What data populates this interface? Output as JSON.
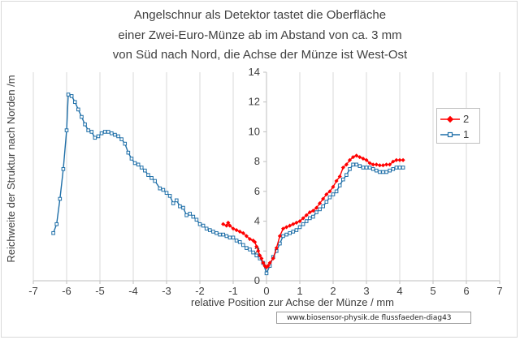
{
  "chart_data": {
    "type": "line",
    "title": [
      "Angelschnur als Detektor tastet die Oberfläche",
      "einer  Zwei-Euro-Münze ab im Abstand von ca. 3 mm",
      "von Süd nach Nord, die Achse der Münze ist West-Ost"
    ],
    "xlabel": "relative Position zur Achse der Münze / mm",
    "ylabel": "Reichweite der Struktur nach Norden /m",
    "xlim": [
      -7,
      7
    ],
    "ylim": [
      0,
      14
    ],
    "x_ticks": [
      "-7",
      "-6",
      "-5",
      "-4",
      "-3",
      "-2",
      "-1",
      "0",
      "1",
      "2",
      "3",
      "4",
      "5",
      "6",
      "7"
    ],
    "y_ticks": [
      "0",
      "2",
      "4",
      "6",
      "8",
      "10",
      "12",
      "14"
    ],
    "grid": "vertical",
    "legend_position": "right",
    "series": [
      {
        "name": "2",
        "color": "#ff0000",
        "marker": "diamond",
        "points": [
          [
            -1.3,
            3.8
          ],
          [
            -1.2,
            3.7
          ],
          [
            -1.15,
            3.9
          ],
          [
            -1.1,
            3.7
          ],
          [
            -1.0,
            3.5
          ],
          [
            -0.9,
            3.4
          ],
          [
            -0.8,
            3.3
          ],
          [
            -0.7,
            3.2
          ],
          [
            -0.6,
            3.0
          ],
          [
            -0.5,
            2.8
          ],
          [
            -0.4,
            2.7
          ],
          [
            -0.35,
            2.6
          ],
          [
            -0.3,
            2.3
          ],
          [
            -0.25,
            2.0
          ],
          [
            -0.2,
            1.7
          ],
          [
            -0.15,
            1.5
          ],
          [
            -0.1,
            1.2
          ],
          [
            -0.05,
            1.0
          ],
          [
            0.0,
            0.9
          ],
          [
            0.05,
            1.0
          ],
          [
            0.1,
            1.2
          ],
          [
            0.2,
            1.5
          ],
          [
            0.3,
            2.2
          ],
          [
            0.4,
            3.0
          ],
          [
            0.5,
            3.5
          ],
          [
            0.6,
            3.6
          ],
          [
            0.7,
            3.7
          ],
          [
            0.8,
            3.8
          ],
          [
            0.9,
            3.9
          ],
          [
            1.0,
            4.0
          ],
          [
            1.1,
            4.2
          ],
          [
            1.2,
            4.4
          ],
          [
            1.3,
            4.6
          ],
          [
            1.4,
            4.7
          ],
          [
            1.5,
            4.9
          ],
          [
            1.6,
            5.2
          ],
          [
            1.7,
            5.5
          ],
          [
            1.8,
            5.8
          ],
          [
            1.9,
            6.0
          ],
          [
            2.0,
            6.3
          ],
          [
            2.1,
            6.7
          ],
          [
            2.2,
            7.0
          ],
          [
            2.3,
            7.6
          ],
          [
            2.4,
            7.8
          ],
          [
            2.5,
            8.1
          ],
          [
            2.6,
            8.3
          ],
          [
            2.7,
            8.4
          ],
          [
            2.8,
            8.3
          ],
          [
            2.9,
            8.2
          ],
          [
            3.0,
            8.1
          ],
          [
            3.1,
            7.9
          ],
          [
            3.2,
            7.8
          ],
          [
            3.3,
            7.8
          ],
          [
            3.4,
            7.75
          ],
          [
            3.5,
            7.75
          ],
          [
            3.6,
            7.8
          ],
          [
            3.7,
            7.8
          ],
          [
            3.8,
            8.0
          ],
          [
            3.9,
            8.1
          ],
          [
            4.0,
            8.1
          ],
          [
            4.1,
            8.1
          ]
        ]
      },
      {
        "name": "1",
        "color": "#1f6fa8",
        "marker": "square",
        "points": [
          [
            -6.4,
            3.2
          ],
          [
            -6.3,
            3.8
          ],
          [
            -6.2,
            5.5
          ],
          [
            -6.1,
            7.5
          ],
          [
            -6.0,
            10.1
          ],
          [
            -5.95,
            12.5
          ],
          [
            -5.85,
            12.4
          ],
          [
            -5.75,
            12.0
          ],
          [
            -5.65,
            11.5
          ],
          [
            -5.55,
            11.0
          ],
          [
            -5.45,
            10.5
          ],
          [
            -5.35,
            10.1
          ],
          [
            -5.25,
            10.0
          ],
          [
            -5.15,
            9.6
          ],
          [
            -5.05,
            9.7
          ],
          [
            -4.95,
            9.9
          ],
          [
            -4.85,
            10.0
          ],
          [
            -4.75,
            10.0
          ],
          [
            -4.65,
            9.9
          ],
          [
            -4.55,
            9.8
          ],
          [
            -4.45,
            9.7
          ],
          [
            -4.35,
            9.5
          ],
          [
            -4.25,
            9.2
          ],
          [
            -4.15,
            8.6
          ],
          [
            -4.05,
            8.2
          ],
          [
            -3.95,
            7.9
          ],
          [
            -3.85,
            7.8
          ],
          [
            -3.75,
            7.6
          ],
          [
            -3.65,
            7.4
          ],
          [
            -3.55,
            7.1
          ],
          [
            -3.45,
            6.9
          ],
          [
            -3.35,
            6.7
          ],
          [
            -3.2,
            6.2
          ],
          [
            -3.1,
            6.1
          ],
          [
            -3.0,
            5.9
          ],
          [
            -2.9,
            5.7
          ],
          [
            -2.8,
            5.2
          ],
          [
            -2.7,
            5.4
          ],
          [
            -2.6,
            5.0
          ],
          [
            -2.5,
            4.9
          ],
          [
            -2.4,
            4.4
          ],
          [
            -2.3,
            4.5
          ],
          [
            -2.2,
            4.3
          ],
          [
            -2.1,
            4.1
          ],
          [
            -2.0,
            3.8
          ],
          [
            -1.9,
            3.7
          ],
          [
            -1.8,
            3.5
          ],
          [
            -1.7,
            3.4
          ],
          [
            -1.6,
            3.3
          ],
          [
            -1.5,
            3.2
          ],
          [
            -1.4,
            3.1
          ],
          [
            -1.3,
            3.1
          ],
          [
            -1.2,
            3.0
          ],
          [
            -1.1,
            2.9
          ],
          [
            -1.0,
            2.9
          ],
          [
            -0.9,
            2.7
          ],
          [
            -0.8,
            2.6
          ],
          [
            -0.7,
            2.4
          ],
          [
            -0.6,
            2.2
          ],
          [
            -0.5,
            2.1
          ],
          [
            -0.4,
            1.9
          ],
          [
            -0.3,
            1.7
          ],
          [
            -0.2,
            1.5
          ],
          [
            -0.1,
            1.2
          ],
          [
            0.0,
            0.5
          ],
          [
            0.1,
            1.0
          ],
          [
            0.2,
            1.6
          ],
          [
            0.3,
            2.0
          ],
          [
            0.4,
            2.5
          ],
          [
            0.5,
            3.0
          ],
          [
            0.6,
            3.1
          ],
          [
            0.7,
            3.2
          ],
          [
            0.8,
            3.3
          ],
          [
            0.9,
            3.4
          ],
          [
            1.0,
            3.6
          ],
          [
            1.1,
            3.8
          ],
          [
            1.2,
            4.0
          ],
          [
            1.3,
            4.2
          ],
          [
            1.4,
            4.3
          ],
          [
            1.5,
            4.6
          ],
          [
            1.6,
            4.8
          ],
          [
            1.7,
            5.0
          ],
          [
            1.8,
            5.3
          ],
          [
            1.9,
            5.6
          ],
          [
            2.0,
            5.8
          ],
          [
            2.1,
            6.0
          ],
          [
            2.2,
            6.4
          ],
          [
            2.3,
            6.8
          ],
          [
            2.4,
            7.1
          ],
          [
            2.5,
            7.5
          ],
          [
            2.6,
            7.8
          ],
          [
            2.7,
            7.8
          ],
          [
            2.8,
            7.7
          ],
          [
            2.9,
            7.6
          ],
          [
            3.0,
            7.6
          ],
          [
            3.1,
            7.6
          ],
          [
            3.2,
            7.5
          ],
          [
            3.3,
            7.4
          ],
          [
            3.4,
            7.3
          ],
          [
            3.5,
            7.3
          ],
          [
            3.6,
            7.3
          ],
          [
            3.7,
            7.4
          ],
          [
            3.8,
            7.5
          ],
          [
            3.9,
            7.6
          ],
          [
            4.0,
            7.6
          ],
          [
            4.1,
            7.6
          ]
        ]
      }
    ],
    "footnote": "www.biosensor-physik.de  flussfaeden-diag43"
  }
}
